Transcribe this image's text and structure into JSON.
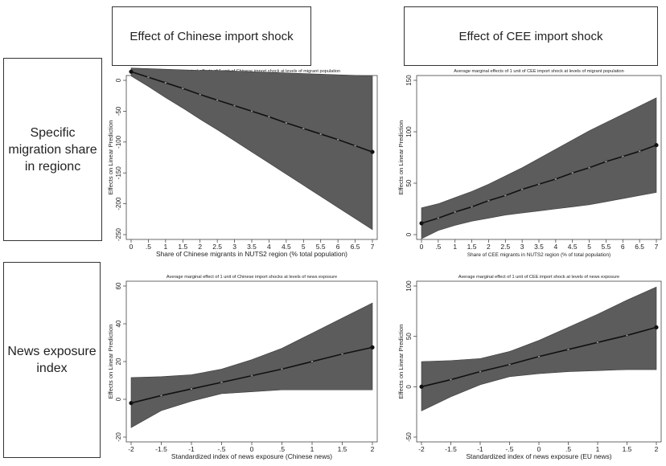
{
  "col_headers": [
    "Effect of Chinese import shock",
    "Effect of CEE import shock"
  ],
  "row_headers": [
    "Specific migration share in regionc",
    "News exposure index"
  ],
  "chart_data": [
    {
      "type": "line",
      "title": "Average marginal effects of 1 unit of Chinese import shock at levels of migrant population",
      "xlabel": "Share of Chinese migrants in NUTS2 region (% total population)",
      "ylabel": "Effects on Linear Prediction",
      "xlim": [
        0,
        7
      ],
      "ylim": [
        -250,
        0
      ],
      "x_ticks": [
        0,
        0.5,
        1,
        1.5,
        2,
        2.5,
        3,
        3.5,
        4,
        4.5,
        5,
        5.5,
        6,
        6.5,
        7
      ],
      "x_tick_labels": [
        "0",
        ".5",
        "1",
        "1.5",
        "2",
        "2.5",
        "3",
        "3.5",
        "4",
        "4.5",
        "5",
        "5.5",
        "6",
        "6.5",
        "7"
      ],
      "y_ticks": [
        0,
        -50,
        -100,
        -150,
        -200,
        -250
      ],
      "y_tick_labels": [
        "0",
        "-50",
        "-100",
        "-150",
        "-200",
        "-250"
      ],
      "x": [
        0,
        0.5,
        1,
        1.5,
        2,
        2.5,
        3,
        3.5,
        4,
        4.5,
        5,
        5.5,
        6,
        6.5,
        7
      ],
      "series": [
        {
          "values": [
            14,
            5,
            -4,
            -13,
            -23,
            -32,
            -41,
            -50,
            -59,
            -69,
            -78,
            -87,
            -96,
            -106,
            -116
          ]
        }
      ],
      "ci_lower": [
        7,
        -10,
        -28,
        -45,
        -63,
        -80,
        -98,
        -116,
        -134,
        -152,
        -170,
        -188,
        -206,
        -224,
        -242
      ],
      "ci_upper": [
        20,
        19,
        18,
        17,
        16,
        16,
        15,
        14,
        13,
        12,
        11,
        10,
        9,
        8,
        7
      ]
    },
    {
      "type": "line",
      "title": "Average marginal effects of 1 unit of CEE import shock at levels of migrant population",
      "xlabel": "Share of CEE migrants in NUTS2 region (% of total population)",
      "ylabel": "Effects on Linear Prediction",
      "xlim": [
        0,
        7
      ],
      "ylim": [
        0,
        150
      ],
      "x_ticks": [
        0,
        0.5,
        1,
        1.5,
        2,
        2.5,
        3,
        3.5,
        4,
        4.5,
        5,
        5.5,
        6,
        6.5,
        7
      ],
      "x_tick_labels": [
        "0",
        ".5",
        "1",
        "1.5",
        "2",
        "2.5",
        "3",
        "3.5",
        "4",
        "4.5",
        "5",
        "5.5",
        "6",
        "6.5",
        "7"
      ],
      "y_ticks": [
        0,
        50,
        100,
        150
      ],
      "y_tick_labels": [
        "0",
        "50",
        "100",
        "150"
      ],
      "x": [
        0,
        0.5,
        1,
        1.5,
        2,
        2.5,
        3,
        3.5,
        4,
        4.5,
        5,
        5.5,
        6,
        6.5,
        7
      ],
      "series": [
        {
          "values": [
            11,
            16,
            22,
            27,
            33,
            38,
            44,
            49,
            54,
            60,
            65,
            71,
            76,
            81,
            87
          ]
        }
      ],
      "ci_lower": [
        -4,
        4,
        9,
        13,
        16,
        19,
        21,
        23,
        25,
        27,
        29,
        32,
        35,
        38,
        41
      ],
      "ci_upper": [
        26,
        30,
        36,
        42,
        49,
        57,
        65,
        74,
        83,
        92,
        101,
        109,
        117,
        125,
        133
      ]
    },
    {
      "type": "line",
      "title": "Average marginal effect of 1 unit of Chinese import shocks at levels of news exposure",
      "xlabel": "Standardized index of news exposure (Chinese news)",
      "ylabel": "Effects on Linear Prediction",
      "xlim": [
        -2,
        2
      ],
      "ylim": [
        -20,
        60
      ],
      "x_ticks": [
        -2,
        -1.5,
        -1,
        -0.5,
        0,
        0.5,
        1,
        1.5,
        2
      ],
      "x_tick_labels": [
        "-2",
        "-1.5",
        "-1",
        "-.5",
        "0",
        ".5",
        "1",
        "1.5",
        "2"
      ],
      "y_ticks": [
        -20,
        0,
        20,
        40,
        60
      ],
      "y_tick_labels": [
        "-20",
        "0",
        "20",
        "40",
        "60"
      ],
      "x": [
        -2,
        -1.5,
        -1,
        -0.5,
        0,
        0.5,
        1,
        1.5,
        2
      ],
      "series": [
        {
          "values": [
            -2,
            2,
            5.5,
            9,
            12.5,
            16,
            20,
            24,
            27.5
          ]
        }
      ],
      "ci_lower": [
        -15,
        -6,
        -1,
        3,
        4,
        5,
        5,
        5,
        5
      ],
      "ci_upper": [
        11.5,
        12,
        13,
        16,
        21,
        27,
        35,
        43,
        51
      ]
    },
    {
      "type": "line",
      "title": "Average marginal effect of 1 unit of CEE import shock at levels of news exposure",
      "xlabel": "Standardized index of news exposure (EU news)",
      "ylabel": "Effects on Linear Prediction",
      "xlim": [
        -2,
        2
      ],
      "ylim": [
        -50,
        100
      ],
      "x_ticks": [
        -2,
        -1.5,
        -1,
        -0.5,
        0,
        0.5,
        1,
        1.5,
        2
      ],
      "x_tick_labels": [
        "-2",
        "-1.5",
        "-1",
        "-.5",
        "0",
        ".5",
        "1",
        "1.5",
        "2"
      ],
      "y_ticks": [
        -50,
        0,
        50,
        100
      ],
      "y_tick_labels": [
        "-50",
        "0",
        "50",
        "100"
      ],
      "x": [
        -2,
        -1.5,
        -1,
        -0.5,
        0,
        0.5,
        1,
        1.5,
        2
      ],
      "series": [
        {
          "values": [
            0,
            7,
            15,
            22,
            30,
            37,
            44,
            51,
            59
          ]
        }
      ],
      "ci_lower": [
        -24,
        -10,
        2,
        10,
        13,
        15,
        16,
        17,
        17
      ],
      "ci_upper": [
        25,
        26,
        28,
        35,
        46,
        59,
        72,
        86,
        99
      ]
    }
  ]
}
